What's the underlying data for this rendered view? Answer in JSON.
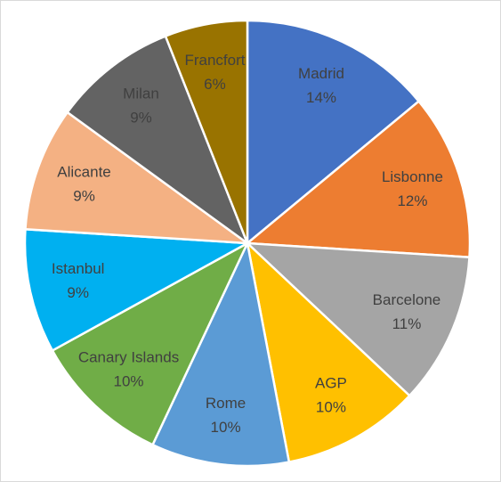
{
  "chart_data": {
    "type": "pie",
    "categories": [
      "Madrid",
      "Lisbonne",
      "Barcelone",
      "AGP",
      "Rome",
      "Canary Islands",
      "Istanbul",
      "Alicante",
      "Milan",
      "Francfort"
    ],
    "values": [
      14,
      12,
      11,
      10,
      10,
      10,
      9,
      9,
      9,
      6
    ],
    "value_labels": [
      "14%",
      "12%",
      "11%",
      "10%",
      "10%",
      "10%",
      "9%",
      "9%",
      "9%",
      "6%"
    ],
    "colors": [
      "#4472c4",
      "#ed7d31",
      "#a5a5a5",
      "#ffc000",
      "#5b9bd5",
      "#70ad47",
      "#00b0f0",
      "#f4b183",
      "#636363",
      "#997300"
    ]
  }
}
